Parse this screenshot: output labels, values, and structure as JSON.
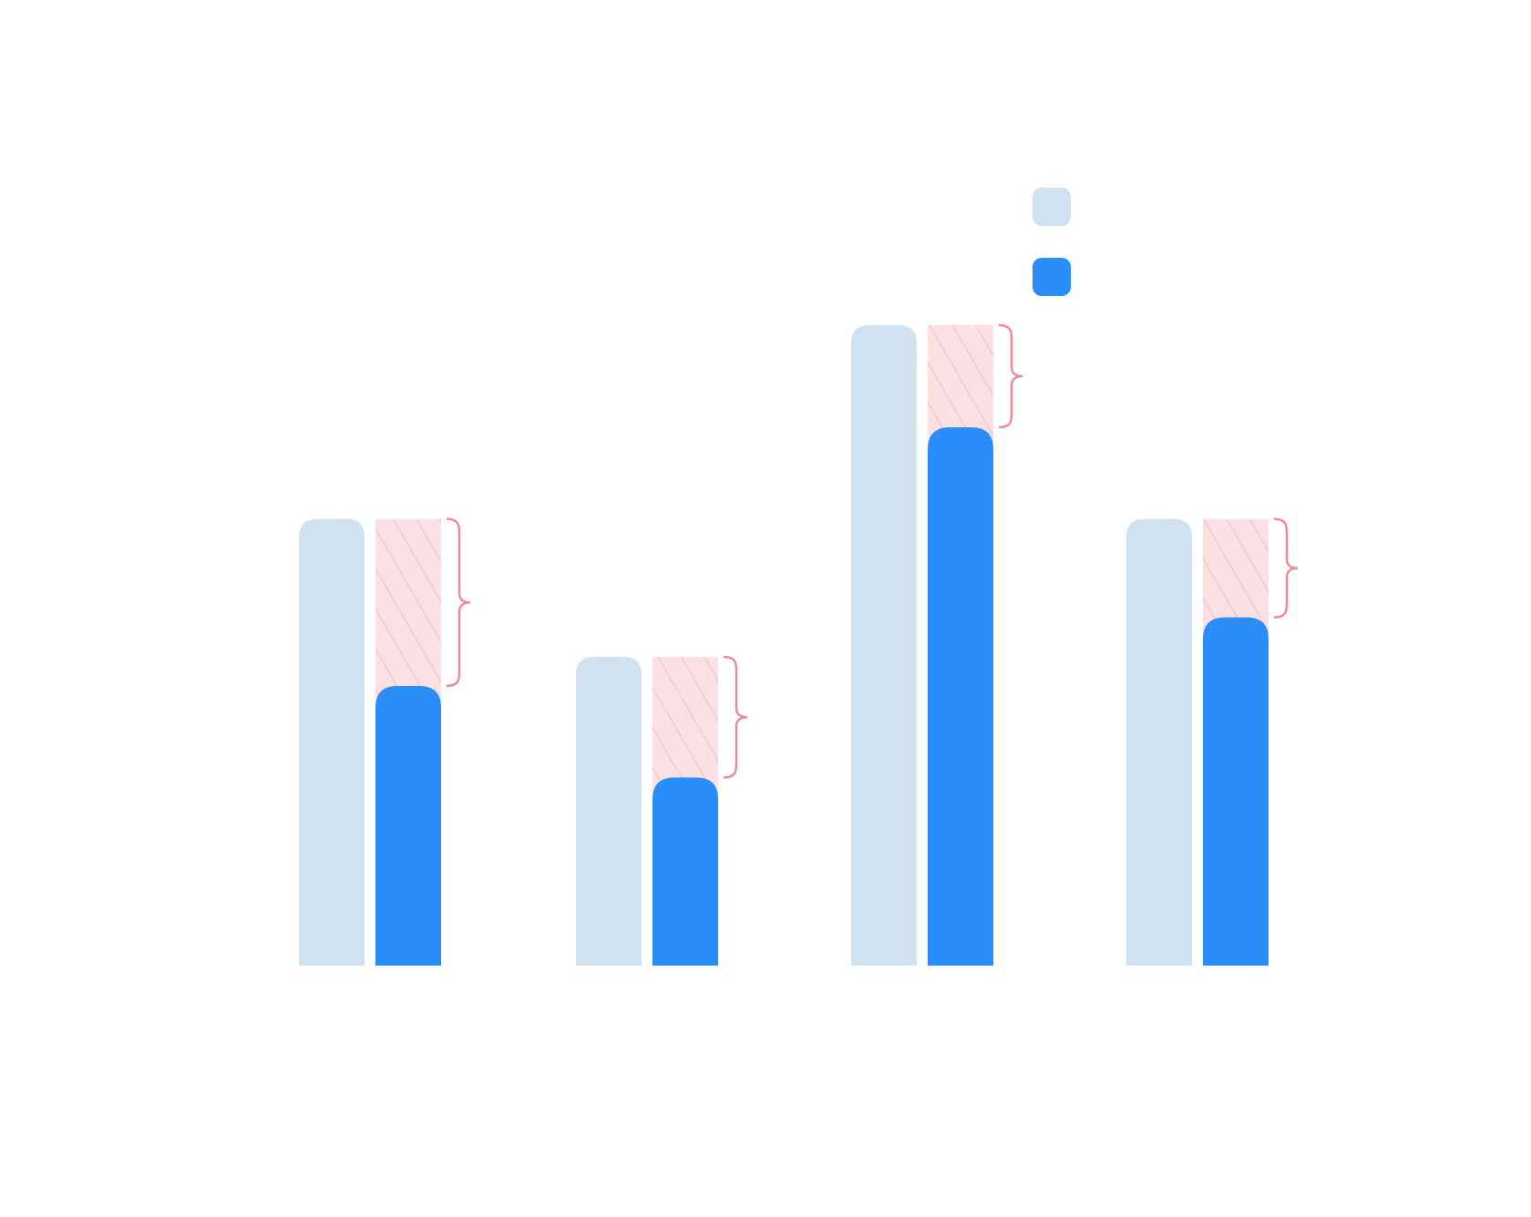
{
  "colors": {
    "baseline_bar": "#d0e1f0",
    "result_bar": "#2a8ef8",
    "gap_fill": "#fce1e4",
    "gap_hatch": "#f8c6cd",
    "brace": "#f08a96",
    "faint_text": "#f4f4f4"
  },
  "chart_data": {
    "type": "bar",
    "title": "",
    "xlabel": "",
    "ylabel": "",
    "categories": [
      "",
      "",
      "",
      ""
    ],
    "ylim": [
      0,
      680
    ],
    "series": [
      {
        "name": "",
        "role": "baseline",
        "values": [
          463,
          320,
          664,
          463
        ]
      },
      {
        "name": "",
        "role": "result",
        "values": [
          290,
          195,
          558,
          361
        ]
      }
    ],
    "gap_annotations": [
      "",
      "",
      "",
      ""
    ],
    "legend": {
      "position": "top-right"
    },
    "grid": false
  }
}
